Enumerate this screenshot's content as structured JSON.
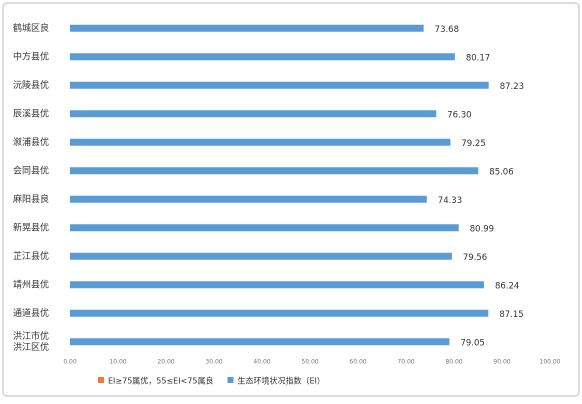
{
  "chart_data": {
    "type": "bar",
    "orientation": "horizontal",
    "categories": [
      "鹤城区良",
      "中方县优",
      "沅陵县优",
      "辰溪县优",
      "溆浦县优",
      "会同县优",
      "麻阳县良",
      "新晃县优",
      "芷江县优",
      "靖州县优",
      "通道县优",
      [
        "洪江市优",
        "洪江区优"
      ]
    ],
    "series": [
      {
        "name": "生态环境状况指数（EI）",
        "color": "#5b9bd5",
        "values": [
          73.68,
          80.17,
          87.23,
          76.3,
          79.25,
          85.06,
          74.33,
          80.99,
          79.56,
          86.24,
          87.15,
          79.05
        ],
        "value_labels": [
          "73.68",
          "80.17",
          "87.23",
          "76.30",
          "79.25",
          "85.06",
          "74.33",
          "80.99",
          "79.56",
          "86.24",
          "87.15",
          "79.05"
        ]
      }
    ],
    "legend": [
      {
        "name": "EI≥75属优，55≤EI<75属良",
        "color": "#ed7d31"
      },
      {
        "name": "生态环境状况指数（EI）",
        "color": "#5b9bd5"
      }
    ],
    "xlim": [
      0,
      100
    ],
    "xticks": [
      {
        "value": 0,
        "label": "0.00"
      },
      {
        "value": 10,
        "label": "10.00"
      },
      {
        "value": 20,
        "label": "20.00"
      },
      {
        "value": 30,
        "label": "30.00"
      },
      {
        "value": 40,
        "label": "40.00"
      },
      {
        "value": 50,
        "label": "50.00"
      },
      {
        "value": 60,
        "label": "60.00"
      },
      {
        "value": 70,
        "label": "70.00"
      },
      {
        "value": 80,
        "label": "80.00"
      },
      {
        "value": 90,
        "label": "90.00"
      },
      {
        "value": 100,
        "label": "100.00"
      }
    ],
    "legend_position": "bottom"
  }
}
